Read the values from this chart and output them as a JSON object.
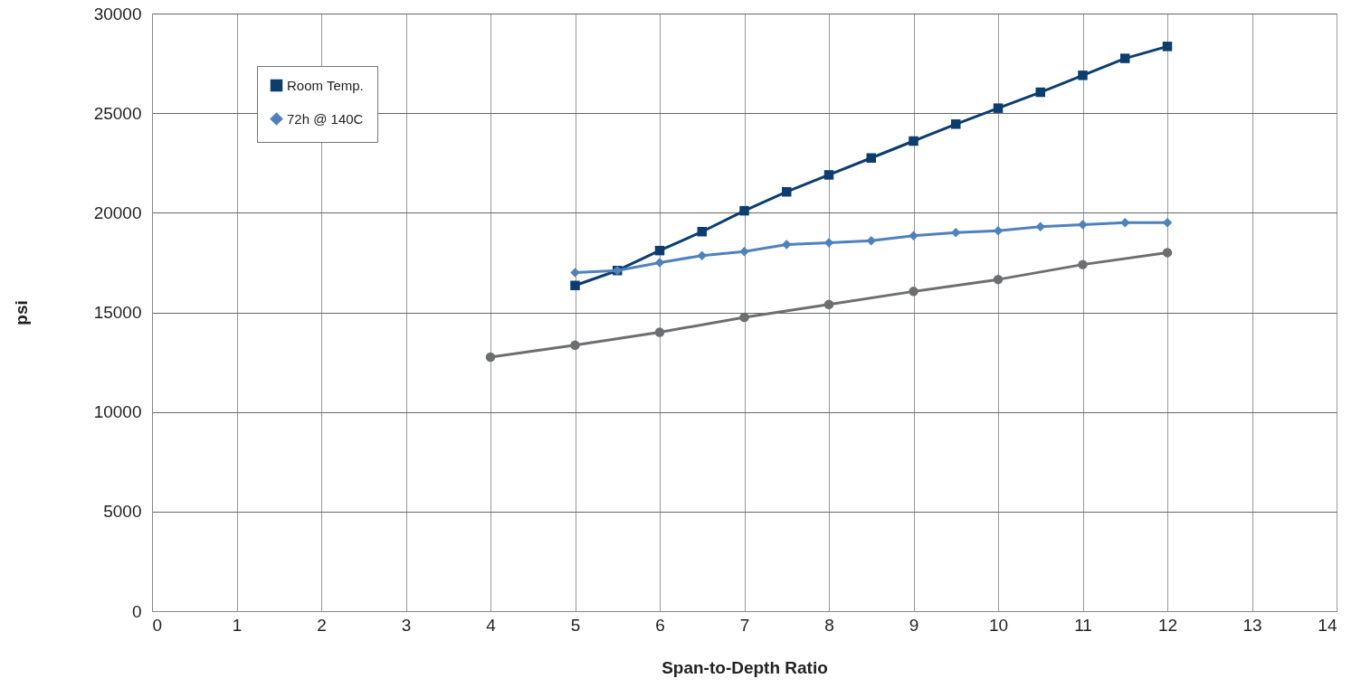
{
  "chart_data": {
    "type": "line",
    "xlabel": "Span-to-Depth Ratio",
    "ylabel": "psi",
    "xlim": [
      0,
      14
    ],
    "xticks": [
      0,
      1,
      2,
      3,
      4,
      5,
      6,
      7,
      8,
      9,
      10,
      11,
      12,
      13,
      14
    ],
    "ylim": [
      0,
      30000
    ],
    "yticks": [
      0,
      5000,
      10000,
      15000,
      20000,
      25000,
      30000
    ],
    "grid": true,
    "legend": "top left",
    "line_style": "solid",
    "series": [
      {
        "name": "Room Temp.",
        "color": "#0b3d6e",
        "marker": "square",
        "x": [
          5,
          5.5,
          6,
          6.5,
          7,
          7.5,
          8,
          8.5,
          9,
          9.5,
          10,
          10.5,
          11,
          11.5,
          12
        ],
        "values": [
          16350,
          17100,
          18100,
          19050,
          20100,
          21050,
          21900,
          22750,
          23600,
          24450,
          25250,
          26050,
          26900,
          27750,
          28350
        ]
      },
      {
        "name": "72h @ 140C",
        "color": "#4f81bd",
        "marker": "diamond",
        "x": [
          5,
          5.5,
          6,
          6.5,
          7,
          7.5,
          8,
          8.5,
          9,
          9.5,
          10,
          10.5,
          11,
          11.5,
          12
        ],
        "values": [
          17000,
          17100,
          17500,
          17850,
          18050,
          18400,
          18500,
          18600,
          18850,
          19000,
          19100,
          19300,
          19400,
          19500,
          19500
        ]
      },
      {
        "color": "#6d6e71",
        "marker": "circle",
        "x": [
          4,
          5,
          6,
          7,
          8,
          9,
          10,
          11,
          12
        ],
        "values": [
          12750,
          13350,
          14000,
          14750,
          15400,
          16050,
          16650,
          17400,
          18000
        ]
      }
    ]
  }
}
